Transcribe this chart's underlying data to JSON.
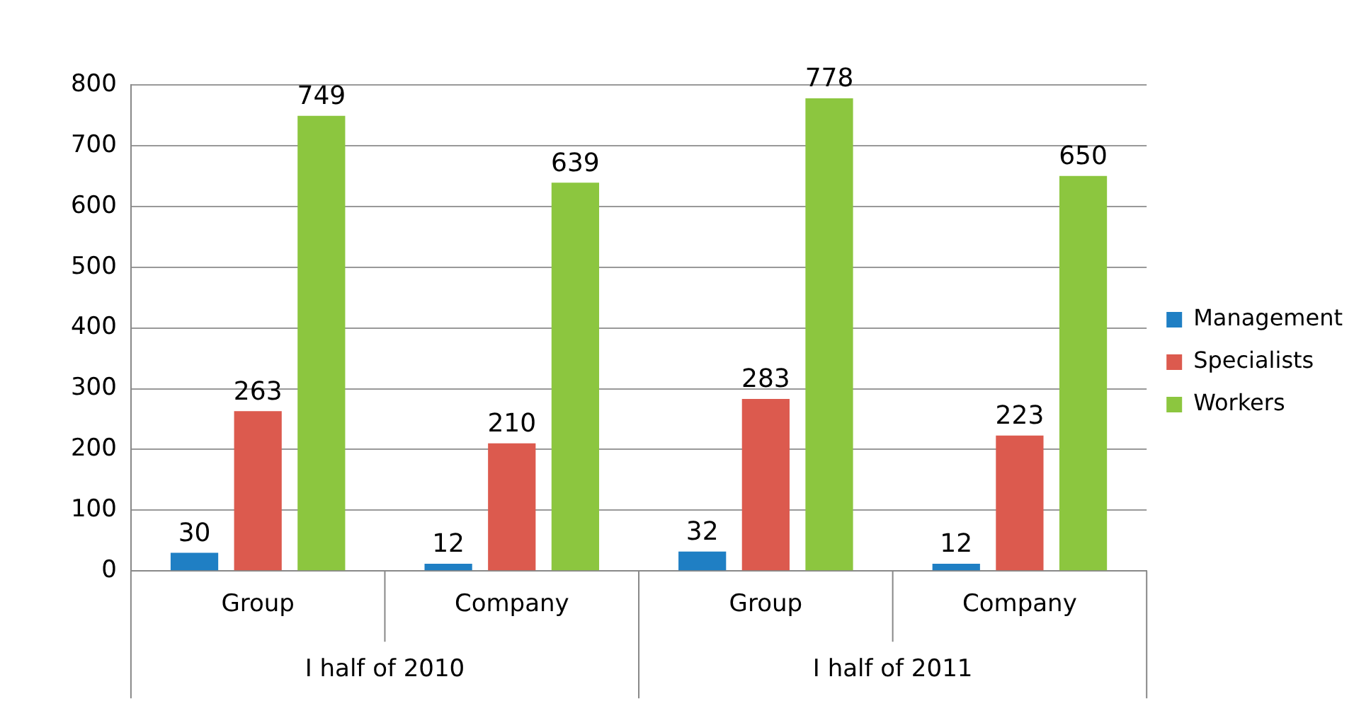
{
  "chart_data": {
    "type": "bar",
    "categories": [
      "Group",
      "Company",
      "Group",
      "Company"
    ],
    "series": [
      {
        "name": "Management",
        "color": "#1f7fc4",
        "values": [
          30,
          12,
          32,
          12
        ]
      },
      {
        "name": "Specialists",
        "color": "#dc5a4e",
        "values": [
          263,
          210,
          283,
          223
        ]
      },
      {
        "name": "Workers",
        "color": "#8cc63f",
        "values": [
          749,
          639,
          778,
          650
        ]
      }
    ],
    "ylim": [
      0,
      800
    ],
    "yticks": [
      0,
      100,
      200,
      300,
      400,
      500,
      600,
      700,
      800
    ],
    "grid": "y",
    "legend": "right",
    "data_labels": true,
    "annotations": [
      "I half of 2010",
      "I half of 2011"
    ]
  }
}
